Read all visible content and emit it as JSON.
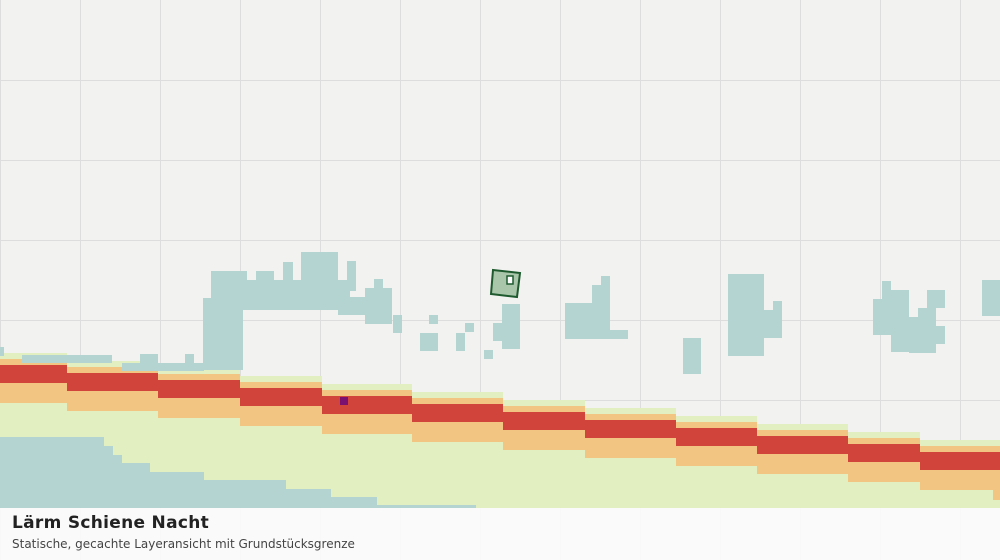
{
  "footer": {
    "title": "Lärm Schiene Nacht",
    "subtitle": "Statische, gecachte Layeransicht mit Grundstücksgrenze"
  }
}
